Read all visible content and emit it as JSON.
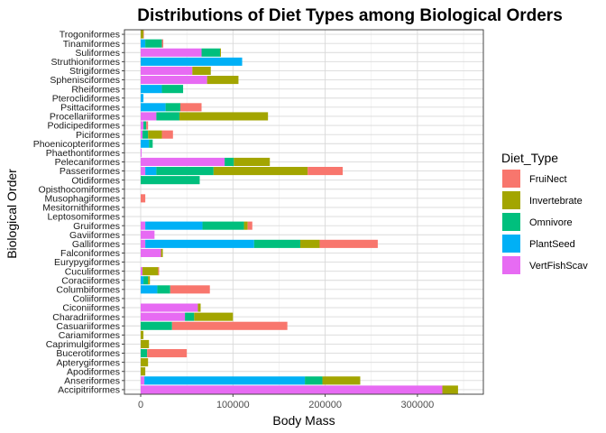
{
  "chart_data": {
    "type": "bar",
    "orientation": "horizontal",
    "stacked": true,
    "title": "Distributions of Diet Types among Biological Orders",
    "xlabel": "Body Mass",
    "ylabel": "Biological Order",
    "xlim": [
      0,
      362000
    ],
    "xticks": [
      0,
      100000,
      200000,
      300000
    ],
    "xtick_labels": [
      "0",
      "100000",
      "200000",
      "300000"
    ],
    "grid": true,
    "legend": {
      "title": "Diet_Type",
      "placement": "right"
    },
    "stack_order": [
      "VertFishScav",
      "PlantSeed",
      "Omnivore",
      "Invertebrate",
      "FruiNect"
    ],
    "categories": [
      "Trogoniformes",
      "Tinamiformes",
      "Suliformes",
      "Struthioniformes",
      "Strigiformes",
      "Sphenisciformes",
      "Rheiformes",
      "Pteroclidiformes",
      "Psittaciformes",
      "Procellariiformes",
      "Podicipediformes",
      "Piciformes",
      "Phoenicopteriformes",
      "Phaethontiformes",
      "Pelecaniformes",
      "Passeriformes",
      "Otidiformes",
      "Opisthocomiformes",
      "Musophagiformes",
      "Mesitornithiformes",
      "Leptosomiformes",
      "Gruiformes",
      "Gaviiformes",
      "Galliformes",
      "Falconiformes",
      "Eurypygiformes",
      "Cuculiformes",
      "Coraciiformes",
      "Columbiformes",
      "Coliiformes",
      "Ciconiiformes",
      "Charadriiformes",
      "Casuariiformes",
      "Cariamiformes",
      "Caprimulgiformes",
      "Bucerotiformes",
      "Apterygiformes",
      "Apodiformes",
      "Anseriformes",
      "Accipitriformes"
    ],
    "series": [
      {
        "name": "FruiNect",
        "color": "#F8766D",
        "values": [
          500,
          1500,
          0,
          0,
          0,
          0,
          0,
          0,
          23000,
          0,
          2000,
          12000,
          0,
          0,
          0,
          38000,
          0,
          0,
          5000,
          0,
          0,
          5000,
          0,
          63000,
          0,
          0,
          1000,
          0,
          43000,
          0,
          0,
          0,
          125000,
          0,
          0,
          43000,
          0,
          0,
          0,
          0
        ]
      },
      {
        "name": "Invertebrate",
        "color": "#A3A500",
        "values": [
          3000,
          0,
          1000,
          0,
          20000,
          34000,
          0,
          0,
          0,
          96000,
          0,
          15000,
          0,
          0,
          39000,
          102000,
          0,
          0,
          0,
          0,
          0,
          4000,
          0,
          21000,
          2000,
          0,
          17000,
          2000,
          0,
          0,
          3000,
          42000,
          0,
          3000,
          9000,
          0,
          8000,
          5000,
          41000,
          17000
        ]
      },
      {
        "name": "Omnivore",
        "color": "#00BF7D",
        "values": [
          0,
          18000,
          20000,
          0,
          0,
          0,
          23000,
          0,
          16000,
          25000,
          3000,
          6000,
          4000,
          0,
          10000,
          62000,
          64000,
          0,
          0,
          0,
          0,
          45000,
          0,
          50000,
          0,
          0,
          0,
          5000,
          14000,
          0,
          0,
          10000,
          34000,
          0,
          0,
          7000,
          0,
          0,
          19000,
          0
        ]
      },
      {
        "name": "PlantSeed",
        "color": "#00B0F6",
        "values": [
          0,
          5000,
          0,
          110000,
          0,
          0,
          23000,
          3000,
          27000,
          0,
          0,
          0,
          9000,
          0,
          0,
          12000,
          0,
          0,
          0,
          0,
          0,
          62000,
          0,
          118000,
          0,
          0,
          0,
          3000,
          18000,
          0,
          0,
          0,
          0,
          0,
          0,
          0,
          0,
          0,
          174000,
          0
        ]
      },
      {
        "name": "VertFishScav",
        "color": "#E76BF3",
        "values": [
          0,
          0,
          66000,
          0,
          56000,
          72000,
          0,
          0,
          0,
          17000,
          3000,
          2000,
          0,
          1000,
          91000,
          5000,
          0,
          0,
          0,
          0,
          0,
          5000,
          15000,
          5000,
          22000,
          0,
          2000,
          0,
          0,
          0,
          62000,
          48000,
          0,
          0,
          0,
          0,
          0,
          0,
          4000,
          327000
        ]
      }
    ]
  }
}
